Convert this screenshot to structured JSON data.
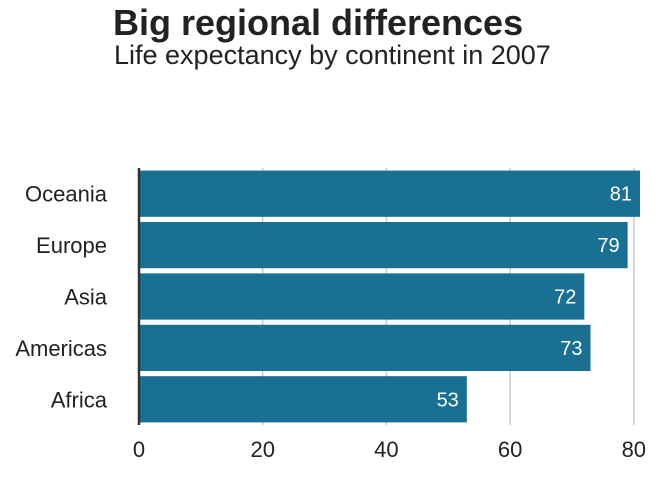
{
  "chart_data": {
    "type": "bar",
    "orientation": "horizontal",
    "title": "Big regional differences",
    "subtitle": "Life expectancy by continent in 2007",
    "xlabel": "",
    "ylabel": "",
    "categories": [
      "Oceania",
      "Europe",
      "Asia",
      "Americas",
      "Africa"
    ],
    "values": [
      81,
      79,
      72,
      73,
      53
    ],
    "data_labels": [
      "81",
      "79",
      "72",
      "73",
      "53"
    ],
    "xlim": [
      0,
      81
    ],
    "x_ticks": [
      0,
      20,
      40,
      60,
      80
    ],
    "x_tick_labels": [
      "0",
      "20",
      "40",
      "60",
      "80"
    ],
    "grid": "vertical",
    "legend": "none",
    "bar_color": "#1a7092",
    "grid_color": "#cbcbcb",
    "axis_color": "#333333"
  }
}
